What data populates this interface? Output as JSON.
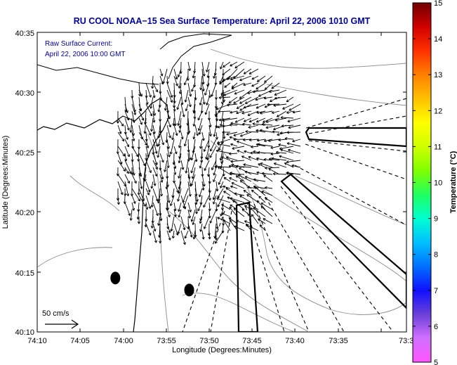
{
  "chart_data": {
    "type": "map",
    "title": "RU COOL  NOAA−15  Sea Surface Temperature:  April 22, 2006 1010 GMT",
    "annotation_lines": [
      "Raw Surface Current:",
      "April 22, 2006 10:00 GMT"
    ],
    "xlabel": "Longitude (Degrees:Minutes)",
    "ylabel": "Latitude (Degrees:Minutes)",
    "x_ticks": [
      "74:10",
      "74:05",
      "74:00",
      "73:55",
      "73:50",
      "73:45",
      "73:40",
      "73:35",
      "73:3"
    ],
    "y_ticks": [
      "40:35",
      "40:30",
      "40:25",
      "40:20",
      "40:15",
      "40:10"
    ],
    "xlim_minutes_west": [
      70,
      27
    ],
    "ylim_minutes": [
      10,
      35
    ],
    "scale_label": "50 cm/s",
    "scale_speed_cm_s": 50,
    "colorbar": {
      "label": "Temperature (°C)",
      "min": 5,
      "max": 15,
      "ticks": [
        "5",
        "6",
        "7",
        "8",
        "9",
        "10",
        "11",
        "12",
        "13",
        "14",
        "15"
      ],
      "colors": [
        "#ff55ff",
        "#d070ff",
        "#6a40d8",
        "#1010ff",
        "#0070ff",
        "#00c0ff",
        "#00ffd0",
        "#20ff60",
        "#80ff00",
        "#d0ff00",
        "#ffff00",
        "#ffc000",
        "#ff8000",
        "#ff3000",
        "#d00000",
        "#700000"
      ]
    },
    "coastline": "#000000",
    "contour_color": "#8a8a8a",
    "arrow_color": "#000000",
    "station_markers": [
      {
        "lon": "74:00.9",
        "lat": "40:14.5"
      },
      {
        "lon": "73:52.3",
        "lat": "40:13.5"
      }
    ]
  }
}
